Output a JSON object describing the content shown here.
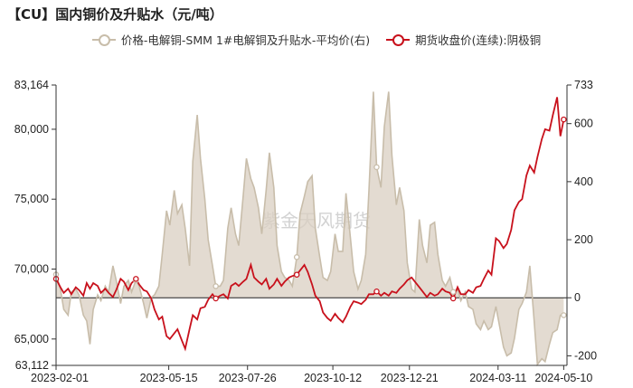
{
  "title": "【CU】国内铜价及升贴水（元/吨）",
  "watermark": "紫金天风期货",
  "colors": {
    "premium_line": "#c8bdaa",
    "premium_fill": "#d9cfc1",
    "price_line": "#c8111c",
    "axis": "#333333",
    "zero_line": "#222222"
  },
  "chart_data": {
    "type": "line",
    "title": "【CU】国内铜价及升贴水（元/吨）",
    "x_ticks": [
      "2023-02-01",
      "2023-05-15",
      "2023-07-26",
      "2023-10-12",
      "2023-12-21",
      "2024-03-11",
      "2024-05-10"
    ],
    "x_range": [
      "2023-02-01",
      "2024-05-13"
    ],
    "y_left": {
      "ticks": [
        "63,112",
        "65,000",
        "70,000",
        "75,000",
        "80,000",
        "83,164"
      ],
      "range": [
        63112,
        83164
      ]
    },
    "y_right": {
      "ticks": [
        "-200",
        "0",
        "200",
        "400",
        "600",
        "733"
      ],
      "range": [
        -233,
        733
      ]
    },
    "legend_position": "top-center",
    "grid": false,
    "series": [
      {
        "name": "价格-电解铜-SMM 1#电解铜及升贴水-平均价(右)",
        "axis": "right",
        "style": "area",
        "points": [
          [
            "2023-02-01",
            80
          ],
          [
            "2023-02-05",
            30
          ],
          [
            "2023-02-08",
            -40
          ],
          [
            "2023-02-12",
            -60
          ],
          [
            "2023-02-15",
            20
          ],
          [
            "2023-02-19",
            30
          ],
          [
            "2023-02-22",
            10
          ],
          [
            "2023-02-26",
            -60
          ],
          [
            "2023-03-01",
            -80
          ],
          [
            "2023-03-04",
            -160
          ],
          [
            "2023-03-07",
            -40
          ],
          [
            "2023-03-11",
            10
          ],
          [
            "2023-03-14",
            -10
          ],
          [
            "2023-03-18",
            40
          ],
          [
            "2023-03-21",
            20
          ],
          [
            "2023-03-25",
            110
          ],
          [
            "2023-03-28",
            60
          ],
          [
            "2023-04-01",
            -20
          ],
          [
            "2023-04-04",
            40
          ],
          [
            "2023-04-08",
            60
          ],
          [
            "2023-04-11",
            20
          ],
          [
            "2023-04-15",
            60
          ],
          [
            "2023-04-18",
            40
          ],
          [
            "2023-04-22",
            -20
          ],
          [
            "2023-04-25",
            -70
          ],
          [
            "2023-04-29",
            0
          ],
          [
            "2023-05-02",
            10
          ],
          [
            "2023-05-06",
            40
          ],
          [
            "2023-05-09",
            150
          ],
          [
            "2023-05-13",
            300
          ],
          [
            "2023-05-16",
            250
          ],
          [
            "2023-05-20",
            370
          ],
          [
            "2023-05-23",
            290
          ],
          [
            "2023-05-27",
            320
          ],
          [
            "2023-05-30",
            240
          ],
          [
            "2023-06-03",
            110
          ],
          [
            "2023-06-06",
            470
          ],
          [
            "2023-06-10",
            630
          ],
          [
            "2023-06-13",
            480
          ],
          [
            "2023-06-17",
            340
          ],
          [
            "2023-06-20",
            200
          ],
          [
            "2023-06-24",
            110
          ],
          [
            "2023-06-27",
            40
          ],
          [
            "2023-07-01",
            40
          ],
          [
            "2023-07-04",
            60
          ],
          [
            "2023-07-08",
            240
          ],
          [
            "2023-07-11",
            310
          ],
          [
            "2023-07-15",
            220
          ],
          [
            "2023-07-18",
            180
          ],
          [
            "2023-07-22",
            350
          ],
          [
            "2023-07-25",
            480
          ],
          [
            "2023-07-29",
            410
          ],
          [
            "2023-08-01",
            380
          ],
          [
            "2023-08-05",
            310
          ],
          [
            "2023-08-08",
            220
          ],
          [
            "2023-08-12",
            370
          ],
          [
            "2023-08-15",
            500
          ],
          [
            "2023-08-19",
            380
          ],
          [
            "2023-08-22",
            180
          ],
          [
            "2023-08-26",
            90
          ],
          [
            "2023-08-29",
            70
          ],
          [
            "2023-09-02",
            60
          ],
          [
            "2023-09-05",
            40
          ],
          [
            "2023-09-09",
            140
          ],
          [
            "2023-09-12",
            290
          ],
          [
            "2023-09-16",
            350
          ],
          [
            "2023-09-19",
            400
          ],
          [
            "2023-09-23",
            420
          ],
          [
            "2023-09-26",
            240
          ],
          [
            "2023-09-30",
            140
          ],
          [
            "2023-10-03",
            70
          ],
          [
            "2023-10-07",
            60
          ],
          [
            "2023-10-10",
            90
          ],
          [
            "2023-10-14",
            220
          ],
          [
            "2023-10-17",
            160
          ],
          [
            "2023-10-21",
            160
          ],
          [
            "2023-10-24",
            360
          ],
          [
            "2023-10-28",
            210
          ],
          [
            "2023-10-31",
            90
          ],
          [
            "2023-11-04",
            30
          ],
          [
            "2023-11-07",
            60
          ],
          [
            "2023-11-11",
            150
          ],
          [
            "2023-11-14",
            370
          ],
          [
            "2023-11-18",
            710
          ],
          [
            "2023-11-21",
            450
          ],
          [
            "2023-11-25",
            380
          ],
          [
            "2023-11-28",
            590
          ],
          [
            "2023-12-02",
            710
          ],
          [
            "2023-12-05",
            490
          ],
          [
            "2023-12-09",
            320
          ],
          [
            "2023-12-12",
            380
          ],
          [
            "2023-12-16",
            300
          ],
          [
            "2023-12-19",
            120
          ],
          [
            "2023-12-23",
            30
          ],
          [
            "2023-12-26",
            20
          ],
          [
            "2023-12-30",
            270
          ],
          [
            "2024-01-02",
            180
          ],
          [
            "2024-01-06",
            120
          ],
          [
            "2024-01-09",
            250
          ],
          [
            "2024-01-13",
            260
          ],
          [
            "2024-01-16",
            150
          ],
          [
            "2024-01-20",
            60
          ],
          [
            "2024-01-23",
            40
          ],
          [
            "2024-01-27",
            70
          ],
          [
            "2024-01-30",
            20
          ],
          [
            "2024-02-03",
            30
          ],
          [
            "2024-02-06",
            -10
          ],
          [
            "2024-02-10",
            20
          ],
          [
            "2024-02-13",
            -30
          ],
          [
            "2024-02-17",
            -40
          ],
          [
            "2024-02-20",
            -90
          ],
          [
            "2024-02-24",
            -110
          ],
          [
            "2024-02-27",
            -80
          ],
          [
            "2024-03-02",
            -110
          ],
          [
            "2024-03-05",
            -100
          ],
          [
            "2024-03-09",
            -30
          ],
          [
            "2024-03-12",
            -90
          ],
          [
            "2024-03-16",
            -170
          ],
          [
            "2024-03-19",
            -200
          ],
          [
            "2024-03-23",
            -190
          ],
          [
            "2024-03-26",
            -140
          ],
          [
            "2024-03-30",
            -40
          ],
          [
            "2024-04-02",
            -20
          ],
          [
            "2024-04-06",
            20
          ],
          [
            "2024-04-09",
            110
          ],
          [
            "2024-04-13",
            -80
          ],
          [
            "2024-04-16",
            -230
          ],
          [
            "2024-04-20",
            -210
          ],
          [
            "2024-04-23",
            -220
          ],
          [
            "2024-04-27",
            -160
          ],
          [
            "2024-04-30",
            -120
          ],
          [
            "2024-05-04",
            -110
          ],
          [
            "2024-05-07",
            -60
          ],
          [
            "2024-05-10",
            -60
          ]
        ],
        "marker_points": [
          [
            "2023-02-01",
            80
          ],
          [
            "2023-04-15",
            60
          ],
          [
            "2023-06-27",
            40
          ],
          [
            "2023-09-09",
            140
          ],
          [
            "2023-11-21",
            450
          ],
          [
            "2024-01-30",
            20
          ],
          [
            "2024-05-10",
            -60
          ]
        ]
      },
      {
        "name": "期货收盘价(连续):阴极铜",
        "axis": "left",
        "style": "line",
        "points": [
          [
            "2023-02-01",
            69300
          ],
          [
            "2023-02-05",
            68700
          ],
          [
            "2023-02-08",
            68300
          ],
          [
            "2023-02-12",
            68600
          ],
          [
            "2023-02-15",
            68200
          ],
          [
            "2023-02-19",
            68700
          ],
          [
            "2023-02-22",
            68500
          ],
          [
            "2023-02-26",
            68100
          ],
          [
            "2023-03-01",
            69000
          ],
          [
            "2023-03-04",
            68600
          ],
          [
            "2023-03-07",
            69000
          ],
          [
            "2023-03-11",
            68800
          ],
          [
            "2023-03-14",
            68300
          ],
          [
            "2023-03-18",
            68600
          ],
          [
            "2023-03-21",
            68300
          ],
          [
            "2023-03-25",
            68000
          ],
          [
            "2023-03-28",
            68500
          ],
          [
            "2023-04-01",
            69300
          ],
          [
            "2023-04-04",
            69100
          ],
          [
            "2023-04-08",
            68500
          ],
          [
            "2023-04-11",
            69000
          ],
          [
            "2023-04-15",
            69300
          ],
          [
            "2023-04-18",
            68900
          ],
          [
            "2023-04-22",
            68500
          ],
          [
            "2023-04-25",
            68400
          ],
          [
            "2023-04-29",
            67900
          ],
          [
            "2023-05-02",
            67100
          ],
          [
            "2023-05-06",
            66400
          ],
          [
            "2023-05-09",
            66600
          ],
          [
            "2023-05-13",
            65200
          ],
          [
            "2023-05-16",
            65000
          ],
          [
            "2023-05-20",
            65400
          ],
          [
            "2023-05-23",
            65700
          ],
          [
            "2023-05-27",
            64900
          ],
          [
            "2023-05-30",
            64300
          ],
          [
            "2023-06-03",
            65700
          ],
          [
            "2023-06-06",
            66700
          ],
          [
            "2023-06-10",
            66400
          ],
          [
            "2023-06-13",
            67200
          ],
          [
            "2023-06-17",
            67300
          ],
          [
            "2023-06-20",
            67800
          ],
          [
            "2023-06-24",
            68200
          ],
          [
            "2023-06-27",
            67900
          ],
          [
            "2023-07-01",
            68100
          ],
          [
            "2023-07-04",
            68200
          ],
          [
            "2023-07-08",
            67900
          ],
          [
            "2023-07-11",
            68800
          ],
          [
            "2023-07-15",
            69000
          ],
          [
            "2023-07-18",
            68800
          ],
          [
            "2023-07-22",
            69100
          ],
          [
            "2023-07-25",
            69300
          ],
          [
            "2023-07-29",
            70300
          ],
          [
            "2023-08-01",
            69400
          ],
          [
            "2023-08-05",
            69100
          ],
          [
            "2023-08-08",
            68900
          ],
          [
            "2023-08-12",
            69300
          ],
          [
            "2023-08-15",
            68600
          ],
          [
            "2023-08-19",
            68900
          ],
          [
            "2023-08-22",
            69300
          ],
          [
            "2023-08-26",
            68800
          ],
          [
            "2023-08-29",
            69100
          ],
          [
            "2023-09-02",
            69400
          ],
          [
            "2023-09-05",
            69500
          ],
          [
            "2023-09-09",
            69600
          ],
          [
            "2023-09-12",
            69900
          ],
          [
            "2023-09-16",
            70300
          ],
          [
            "2023-09-19",
            69800
          ],
          [
            "2023-09-23",
            68900
          ],
          [
            "2023-09-26",
            68100
          ],
          [
            "2023-09-30",
            67700
          ],
          [
            "2023-10-03",
            66900
          ],
          [
            "2023-10-07",
            66500
          ],
          [
            "2023-10-10",
            66300
          ],
          [
            "2023-10-14",
            66800
          ],
          [
            "2023-10-17",
            66500
          ],
          [
            "2023-10-21",
            66200
          ],
          [
            "2023-10-24",
            66600
          ],
          [
            "2023-10-28",
            67300
          ],
          [
            "2023-10-31",
            67700
          ],
          [
            "2023-11-04",
            67600
          ],
          [
            "2023-11-07",
            67500
          ],
          [
            "2023-11-11",
            67800
          ],
          [
            "2023-11-14",
            68200
          ],
          [
            "2023-11-18",
            68200
          ],
          [
            "2023-11-21",
            68400
          ],
          [
            "2023-11-25",
            68100
          ],
          [
            "2023-11-28",
            68300
          ],
          [
            "2023-12-02",
            68100
          ],
          [
            "2023-12-05",
            68400
          ],
          [
            "2023-12-09",
            68300
          ],
          [
            "2023-12-12",
            68600
          ],
          [
            "2023-12-16",
            68900
          ],
          [
            "2023-12-19",
            69200
          ],
          [
            "2023-12-23",
            69400
          ],
          [
            "2023-12-26",
            69100
          ],
          [
            "2023-12-30",
            68700
          ],
          [
            "2024-01-02",
            68400
          ],
          [
            "2024-01-06",
            68000
          ],
          [
            "2024-01-09",
            68300
          ],
          [
            "2024-01-13",
            68100
          ],
          [
            "2024-01-16",
            68200
          ],
          [
            "2024-01-20",
            68600
          ],
          [
            "2024-01-23",
            68400
          ],
          [
            "2024-01-27",
            68300
          ],
          [
            "2024-01-30",
            67900
          ],
          [
            "2024-02-03",
            68700
          ],
          [
            "2024-02-06",
            68200
          ],
          [
            "2024-02-10",
            68200
          ],
          [
            "2024-02-13",
            68500
          ],
          [
            "2024-02-17",
            68300
          ],
          [
            "2024-02-20",
            68700
          ],
          [
            "2024-02-24",
            68800
          ],
          [
            "2024-02-27",
            69300
          ],
          [
            "2024-03-02",
            69900
          ],
          [
            "2024-03-05",
            69600
          ],
          [
            "2024-03-09",
            72200
          ],
          [
            "2024-03-12",
            72000
          ],
          [
            "2024-03-16",
            71500
          ],
          [
            "2024-03-19",
            71800
          ],
          [
            "2024-03-23",
            72800
          ],
          [
            "2024-03-26",
            74200
          ],
          [
            "2024-03-30",
            74800
          ],
          [
            "2024-04-02",
            75000
          ],
          [
            "2024-04-06",
            76700
          ],
          [
            "2024-04-09",
            77400
          ],
          [
            "2024-04-13",
            76900
          ],
          [
            "2024-04-16",
            78000
          ],
          [
            "2024-04-20",
            79300
          ],
          [
            "2024-04-23",
            80000
          ],
          [
            "2024-04-27",
            79900
          ],
          [
            "2024-04-30",
            81000
          ],
          [
            "2024-05-04",
            82300
          ],
          [
            "2024-05-07",
            79500
          ],
          [
            "2024-05-10",
            80700
          ]
        ]
      }
    ]
  }
}
